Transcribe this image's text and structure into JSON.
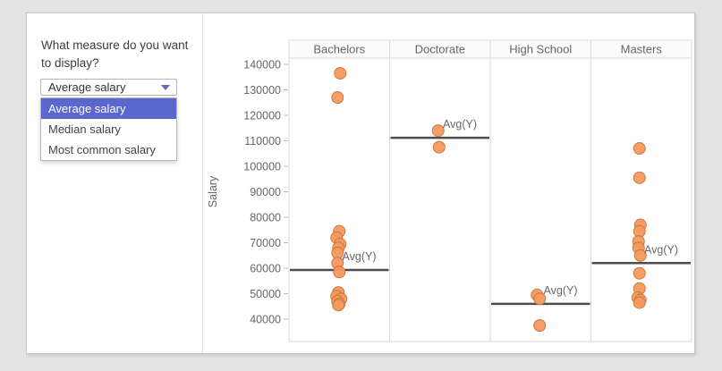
{
  "panel": {
    "question": "What measure do you want to display?",
    "dropdown": {
      "selected": "Average salary",
      "options": [
        "Average salary",
        "Median salary",
        "Most common salary"
      ],
      "highlighted_index": 0,
      "highlight_color": "#5A68CE",
      "caret_icon": "triangle-down",
      "caret_color": "#5c6bc0"
    }
  },
  "chart_data": {
    "type": "scatter",
    "title": "",
    "ylabel": "Salary",
    "avg_label": "Avg(Y)",
    "categories": [
      "Bachelors",
      "Doctorate",
      "High School",
      "Masters"
    ],
    "yticks": [
      40000,
      50000,
      60000,
      70000,
      80000,
      90000,
      100000,
      110000,
      120000,
      130000,
      140000
    ],
    "ylim": [
      35000,
      143000
    ],
    "grid": false,
    "series": [
      {
        "category": "Bachelors",
        "avg_line": 59300,
        "values": [
          136500,
          127000,
          74500,
          72000,
          69500,
          68000,
          66000,
          62000,
          58500,
          50500,
          49000,
          48000,
          47000,
          46000,
          45500
        ],
        "dx": [
          1,
          -2,
          0,
          -3,
          1,
          -1,
          -2,
          -2,
          0,
          -1,
          -3,
          2,
          -2,
          0,
          -1
        ]
      },
      {
        "category": "Doctorate",
        "avg_line": 111200,
        "values": [
          114000,
          107500
        ],
        "dx": [
          -2,
          -1
        ]
      },
      {
        "category": "High School",
        "avg_line": 46000,
        "values": [
          49500,
          48000,
          37500
        ],
        "dx": [
          -4,
          -1,
          -1
        ]
      },
      {
        "category": "Masters",
        "avg_line": 62000,
        "values": [
          107000,
          95500,
          77000,
          74500,
          70500,
          68000,
          65000,
          58000,
          52000,
          48500,
          47500,
          46500
        ],
        "dx": [
          -2,
          -2,
          -1,
          -2,
          -3,
          -3,
          -1,
          -2,
          -2,
          -4,
          -1,
          -2
        ]
      }
    ],
    "colors": {
      "point_fill": "#F5995E",
      "point_stroke": "#C8793F",
      "avg_line": "#4d4d4d",
      "grid": "#d9d9d9",
      "header_bg": "#fbfbfb",
      "text": "#666666"
    }
  }
}
